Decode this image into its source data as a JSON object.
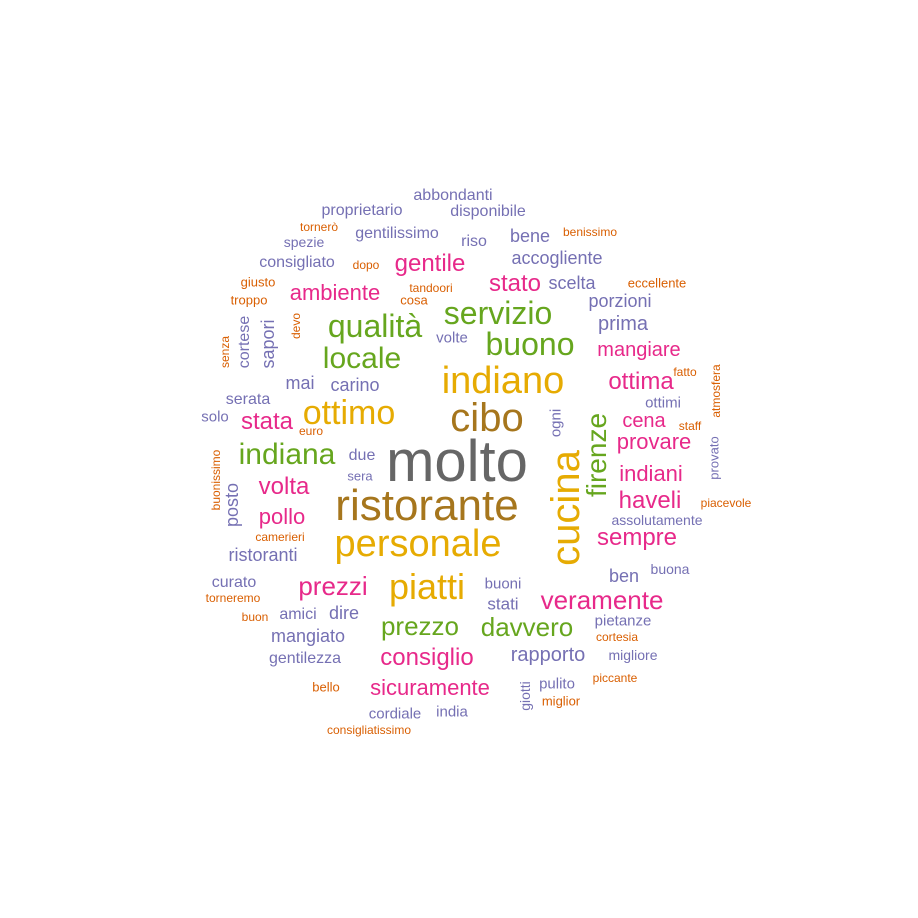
{
  "colors": {
    "gray": "#666666",
    "brown": "#A6761D",
    "gold": "#E6AB02",
    "green": "#66A61E",
    "magenta": "#E7298A",
    "purple": "#7570B3",
    "orange": "#D95F02"
  },
  "words": [
    {
      "text": "molto",
      "color": "gray"
    },
    {
      "text": "ristorante",
      "color": "brown"
    },
    {
      "text": "cibo",
      "color": "brown"
    },
    {
      "text": "personale",
      "color": "gold"
    },
    {
      "text": "indiano",
      "color": "gold"
    },
    {
      "text": "cucina",
      "color": "gold"
    },
    {
      "text": "piatti",
      "color": "gold"
    },
    {
      "text": "ottimo",
      "color": "gold"
    },
    {
      "text": "qualità",
      "color": "green"
    },
    {
      "text": "servizio",
      "color": "green"
    },
    {
      "text": "buono",
      "color": "green"
    },
    {
      "text": "locale",
      "color": "green"
    },
    {
      "text": "indiana",
      "color": "green"
    },
    {
      "text": "firenze",
      "color": "green"
    },
    {
      "text": "prezzo",
      "color": "green"
    },
    {
      "text": "davvero",
      "color": "green"
    },
    {
      "text": "stato",
      "color": "magenta"
    },
    {
      "text": "gentile",
      "color": "magenta"
    },
    {
      "text": "ambiente",
      "color": "magenta"
    },
    {
      "text": "ottima",
      "color": "magenta"
    },
    {
      "text": "mangiare",
      "color": "magenta"
    },
    {
      "text": "stata",
      "color": "magenta"
    },
    {
      "text": "cena",
      "color": "magenta"
    },
    {
      "text": "provare",
      "color": "magenta"
    },
    {
      "text": "indiani",
      "color": "magenta"
    },
    {
      "text": "volta",
      "color": "magenta"
    },
    {
      "text": "haveli",
      "color": "magenta"
    },
    {
      "text": "pollo",
      "color": "magenta"
    },
    {
      "text": "sempre",
      "color": "magenta"
    },
    {
      "text": "prezzi",
      "color": "magenta"
    },
    {
      "text": "veramente",
      "color": "magenta"
    },
    {
      "text": "consiglio",
      "color": "magenta"
    },
    {
      "text": "sicuramente",
      "color": "magenta"
    },
    {
      "text": "abbondanti",
      "color": "purple"
    },
    {
      "text": "proprietario",
      "color": "purple"
    },
    {
      "text": "disponibile",
      "color": "purple"
    },
    {
      "text": "gentilissimo",
      "color": "purple"
    },
    {
      "text": "riso",
      "color": "purple"
    },
    {
      "text": "bene",
      "color": "purple"
    },
    {
      "text": "spezie",
      "color": "purple"
    },
    {
      "text": "consigliato",
      "color": "purple"
    },
    {
      "text": "accogliente",
      "color": "purple"
    },
    {
      "text": "scelta",
      "color": "purple"
    },
    {
      "text": "porzioni",
      "color": "purple"
    },
    {
      "text": "cortese",
      "color": "purple"
    },
    {
      "text": "sapori",
      "color": "purple"
    },
    {
      "text": "prima",
      "color": "purple"
    },
    {
      "text": "volte",
      "color": "purple"
    },
    {
      "text": "mai",
      "color": "purple"
    },
    {
      "text": "carino",
      "color": "purple"
    },
    {
      "text": "serata",
      "color": "purple"
    },
    {
      "text": "solo",
      "color": "purple"
    },
    {
      "text": "ottimi",
      "color": "purple"
    },
    {
      "text": "ogni",
      "color": "purple"
    },
    {
      "text": "due",
      "color": "purple"
    },
    {
      "text": "sera",
      "color": "purple"
    },
    {
      "text": "posto",
      "color": "purple"
    },
    {
      "text": "provato",
      "color": "purple"
    },
    {
      "text": "assolutamente",
      "color": "purple"
    },
    {
      "text": "ristoranti",
      "color": "purple"
    },
    {
      "text": "curato",
      "color": "purple"
    },
    {
      "text": "ben",
      "color": "purple"
    },
    {
      "text": "buona",
      "color": "purple"
    },
    {
      "text": "buoni",
      "color": "purple"
    },
    {
      "text": "stati",
      "color": "purple"
    },
    {
      "text": "amici",
      "color": "purple"
    },
    {
      "text": "dire",
      "color": "purple"
    },
    {
      "text": "mangiato",
      "color": "purple"
    },
    {
      "text": "pietanze",
      "color": "purple"
    },
    {
      "text": "gentilezza",
      "color": "purple"
    },
    {
      "text": "rapporto",
      "color": "purple"
    },
    {
      "text": "migliore",
      "color": "purple"
    },
    {
      "text": "giotti",
      "color": "purple"
    },
    {
      "text": "pulito",
      "color": "purple"
    },
    {
      "text": "cordiale",
      "color": "purple"
    },
    {
      "text": "india",
      "color": "purple"
    },
    {
      "text": "tornerò",
      "color": "orange"
    },
    {
      "text": "benissimo",
      "color": "orange"
    },
    {
      "text": "dopo",
      "color": "orange"
    },
    {
      "text": "giusto",
      "color": "orange"
    },
    {
      "text": "tandoori",
      "color": "orange"
    },
    {
      "text": "eccellente",
      "color": "orange"
    },
    {
      "text": "troppo",
      "color": "orange"
    },
    {
      "text": "cosa",
      "color": "orange"
    },
    {
      "text": "senza",
      "color": "orange"
    },
    {
      "text": "devo",
      "color": "orange"
    },
    {
      "text": "fatto",
      "color": "orange"
    },
    {
      "text": "atmosfera",
      "color": "orange"
    },
    {
      "text": "euro",
      "color": "orange"
    },
    {
      "text": "staff",
      "color": "orange"
    },
    {
      "text": "buonissimo",
      "color": "orange"
    },
    {
      "text": "piacevole",
      "color": "orange"
    },
    {
      "text": "camerieri",
      "color": "orange"
    },
    {
      "text": "torneremo",
      "color": "orange"
    },
    {
      "text": "buon",
      "color": "orange"
    },
    {
      "text": "cortesia",
      "color": "orange"
    },
    {
      "text": "bello",
      "color": "orange"
    },
    {
      "text": "piccante",
      "color": "orange"
    },
    {
      "text": "miglior",
      "color": "orange"
    },
    {
      "text": "consigliatissimo",
      "color": "orange"
    }
  ]
}
